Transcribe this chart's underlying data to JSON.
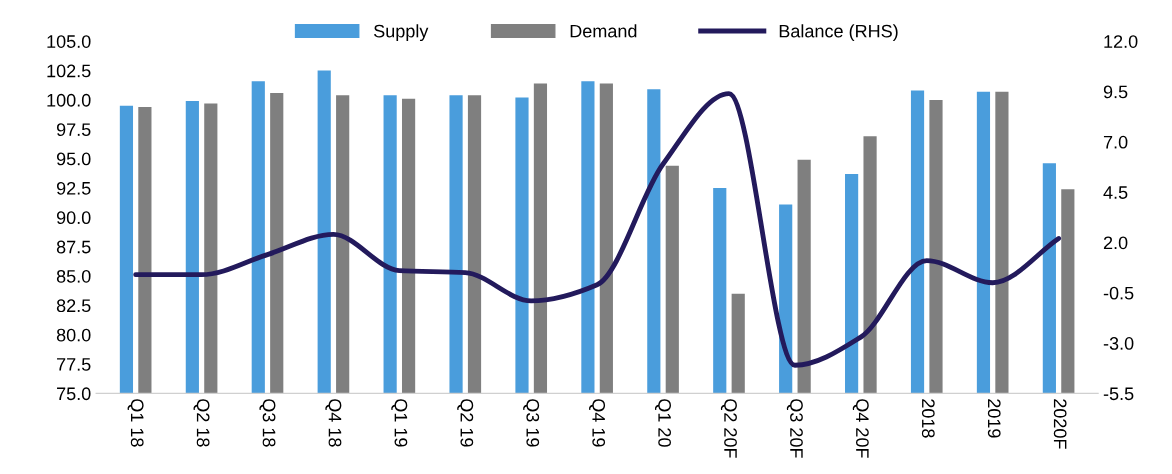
{
  "chart_data": {
    "type": "bar",
    "categories": [
      "Q1 18",
      "Q2 18",
      "Q3 18",
      "Q4 18",
      "Q1 19",
      "Q2 19",
      "Q3 19",
      "Q4 19",
      "Q1 20",
      "Q2 20F",
      "Q3 20F",
      "Q4 20F",
      "2018",
      "2019",
      "2020F"
    ],
    "series": [
      {
        "name": "Supply",
        "color": "#4a9ddc",
        "values": [
          99.5,
          99.9,
          101.6,
          102.5,
          100.4,
          100.4,
          100.2,
          101.6,
          100.9,
          92.5,
          91.1,
          93.7,
          100.8,
          100.7,
          94.6
        ]
      },
      {
        "name": "Demand",
        "color": "#7f7f7f",
        "values": [
          99.4,
          99.7,
          100.6,
          100.4,
          100.1,
          100.4,
          101.4,
          101.4,
          94.4,
          83.5,
          94.9,
          96.9,
          100.0,
          100.7,
          92.4
        ]
      },
      {
        "name": "Balance (RHS)",
        "type": "line",
        "axis": "y2",
        "color": "#231a5c",
        "values": [
          0.4,
          0.4,
          1.4,
          2.4,
          0.6,
          0.5,
          -0.9,
          -0.1,
          5.9,
          9.4,
          -4.1,
          -2.7,
          1.1,
          0.0,
          2.2
        ]
      }
    ],
    "ylim": [
      75,
      105
    ],
    "yticks": [
      {
        "value": 75,
        "label": "75.0"
      },
      {
        "value": 77.5,
        "label": "77.5"
      },
      {
        "value": 80,
        "label": "80.0"
      },
      {
        "value": 82.5,
        "label": "82.5"
      },
      {
        "value": 85,
        "label": "85.0"
      },
      {
        "value": 87.5,
        "label": "87.5"
      },
      {
        "value": 90,
        "label": "90.0"
      },
      {
        "value": 92.5,
        "label": "92.5"
      },
      {
        "value": 95,
        "label": "95.0"
      },
      {
        "value": 97.5,
        "label": "97.5"
      },
      {
        "value": 100,
        "label": "100.0"
      },
      {
        "value": 102.5,
        "label": "102.5"
      },
      {
        "value": 105,
        "label": "105.0"
      }
    ],
    "y2lim": [
      -5.5,
      12.0
    ],
    "y2ticks": [
      {
        "value": -5.5,
        "label": "-5.5"
      },
      {
        "value": -3,
        "label": "-3.0"
      },
      {
        "value": -0.5,
        "label": "-0.5"
      },
      {
        "value": 2,
        "label": "2.0"
      },
      {
        "value": 4.5,
        "label": "4.5"
      },
      {
        "value": 7,
        "label": "7.0"
      },
      {
        "value": 9.5,
        "label": "9.5"
      },
      {
        "value": 12,
        "label": "12.0"
      }
    ],
    "legend": "top",
    "grid": false,
    "marker": "none",
    "line_style": "solid"
  }
}
